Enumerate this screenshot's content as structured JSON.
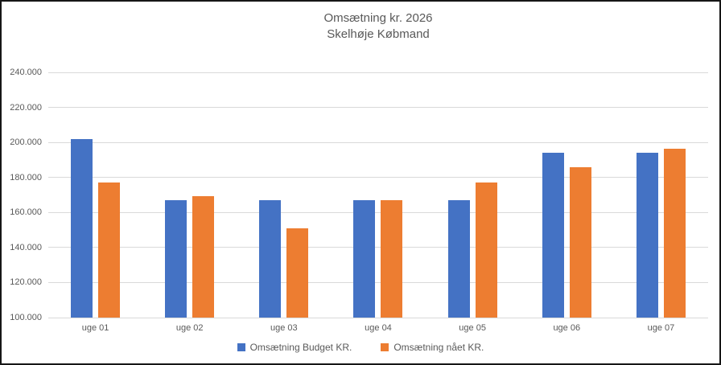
{
  "chart_data": {
    "type": "bar",
    "title": "Omsætning kr. 2026",
    "subtitle": "Skelhøje Købmand",
    "categories": [
      "uge 01",
      "uge 02",
      "uge 03",
      "uge 04",
      "uge 05",
      "uge 06",
      "uge 07"
    ],
    "series": [
      {
        "name": "Omsætning Budget KR.",
        "color": "#4472C4",
        "values": [
          202000,
          167000,
          167000,
          167000,
          167000,
          194000,
          194000
        ]
      },
      {
        "name": "Omsætning nået KR.",
        "color": "#ED7D31",
        "values": [
          177000,
          169500,
          151000,
          167000,
          177000,
          186000,
          196500
        ]
      }
    ],
    "ylim": [
      100000,
      240000
    ],
    "ytick_step": 20000,
    "ytick_labels": [
      "100.000",
      "120.000",
      "140.000",
      "160.000",
      "180.000",
      "200.000",
      "220.000",
      "240.000"
    ],
    "grid": true,
    "legend_position": "bottom",
    "colors": {
      "gridline": "#d9d9d9",
      "axis_text": "#595959",
      "title_text": "#595959",
      "frame_border": "#161616"
    }
  }
}
